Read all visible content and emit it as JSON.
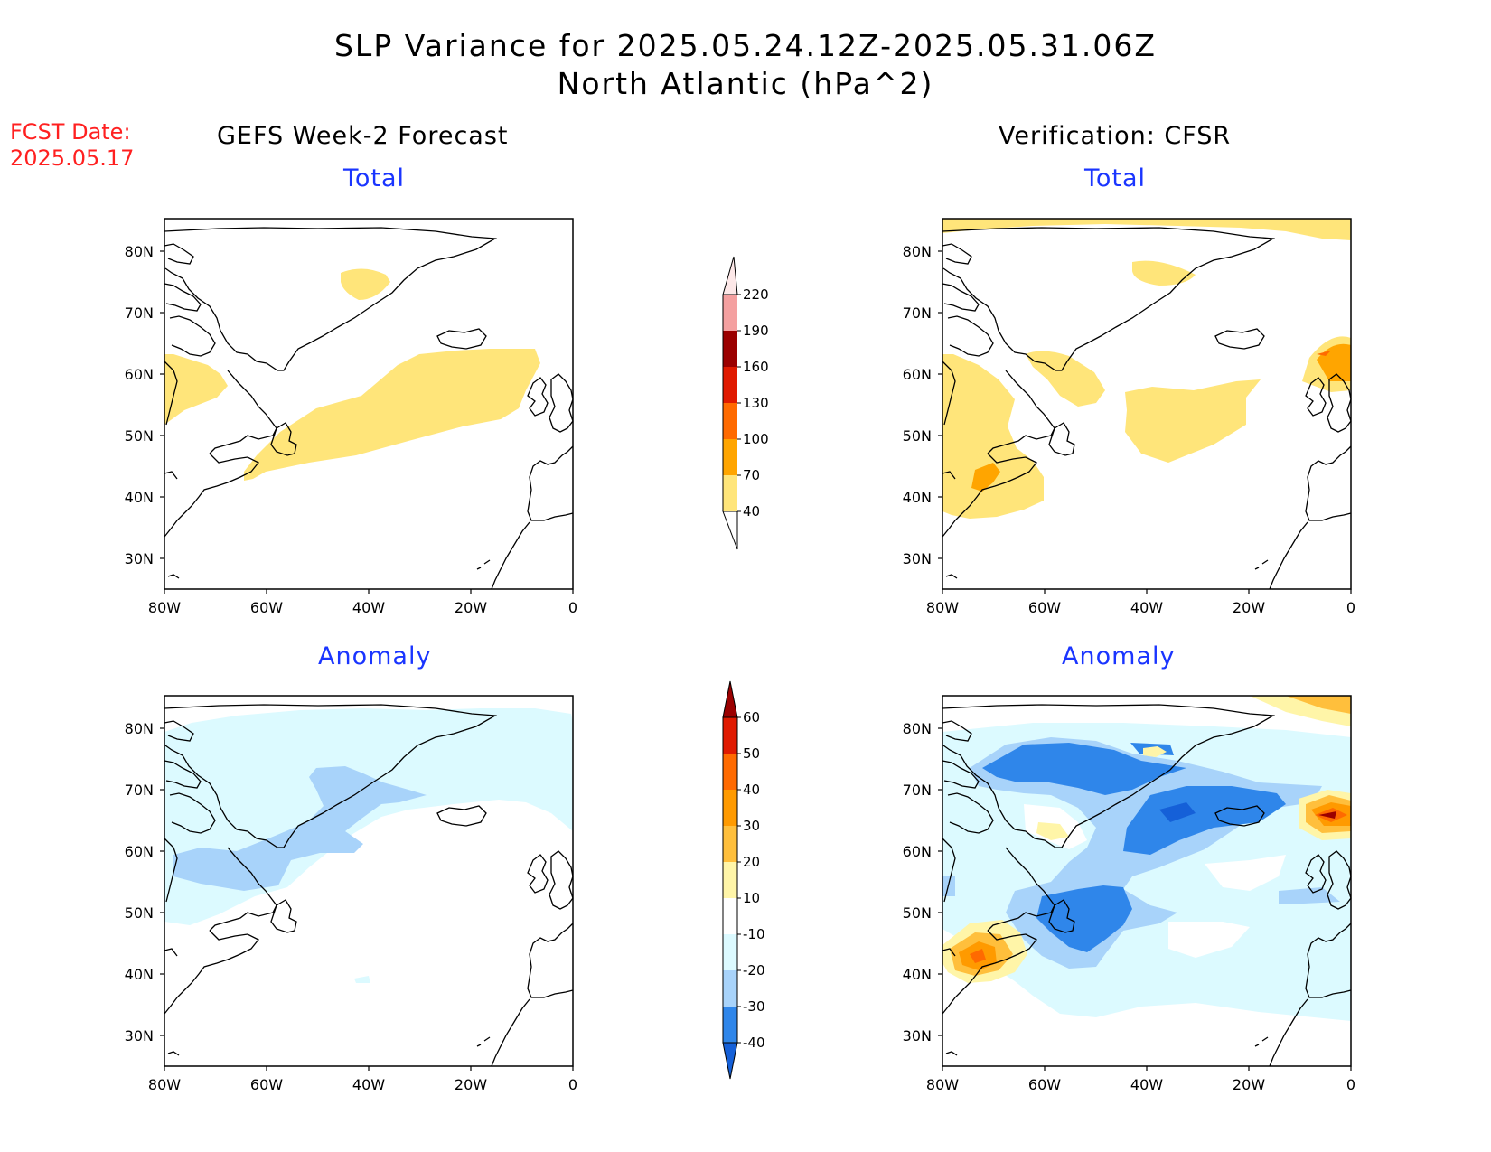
{
  "header": {
    "title_line1": "SLP Variance for 2025.05.24.12Z-2025.05.31.06Z",
    "title_line2": "North Atlantic (hPa^2)"
  },
  "fcst": {
    "label": "FCST Date:",
    "date": "2025.05.17"
  },
  "columns": {
    "left": "GEFS Week-2 Forecast",
    "right": "Verification: CFSR"
  },
  "panels": {
    "total_label": "Total",
    "anomaly_label": "Anomaly"
  },
  "axes": {
    "lat_labels": [
      "80N",
      "70N",
      "60N",
      "50N",
      "40N",
      "30N"
    ],
    "lon_labels": [
      "80W",
      "60W",
      "40W",
      "20W",
      "0"
    ]
  },
  "colorbars": {
    "total": {
      "levels": [
        "40",
        "70",
        "100",
        "130",
        "160",
        "190",
        "220"
      ],
      "colors": [
        "#ffe57a",
        "#ffa500",
        "#ff6a00",
        "#e01a00",
        "#9b0000",
        "#f4a0a0",
        "#fde8e8"
      ]
    },
    "anomaly": {
      "levels": [
        "-40",
        "-30",
        "-20",
        "-10",
        "10",
        "20",
        "30",
        "40",
        "50",
        "60"
      ],
      "colors": [
        "#1560d8",
        "#2f86ea",
        "#a8d3fa",
        "#dcfaff",
        "#ffffff",
        "#fff5a8",
        "#ffbf3c",
        "#ff9a00",
        "#ff6a00",
        "#e01a00",
        "#9b0000"
      ]
    }
  }
}
